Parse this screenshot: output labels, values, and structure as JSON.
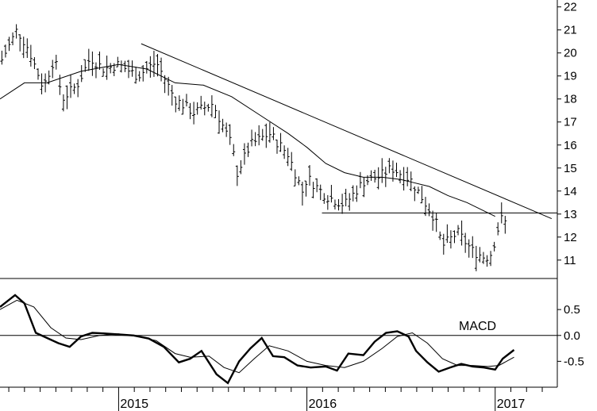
{
  "chart_data": [
    {
      "type": "ohlc",
      "panel": "price",
      "title": "",
      "ylim": [
        10.2,
        22.3
      ],
      "yticks": [
        11,
        12,
        13,
        14,
        15,
        16,
        17,
        18,
        19,
        20,
        21,
        22
      ],
      "x_tick_labels": [
        "2015",
        "2016",
        "2017"
      ],
      "x_tick_positions": [
        2015.0,
        2016.0,
        2017.0
      ],
      "xlim": [
        2014.37,
        2017.33
      ],
      "series": [
        {
          "kind": "price_bars",
          "anchors_t": [
            2014.38,
            2014.46,
            2014.52,
            2014.6,
            2014.66,
            2014.7,
            2014.78,
            2014.85,
            2014.92,
            2015.0,
            2015.1,
            2015.2,
            2015.3,
            2015.4,
            2015.5,
            2015.6,
            2015.63,
            2015.7,
            2015.8,
            2015.9,
            2015.98,
            2016.0,
            2016.1,
            2016.2,
            2016.3,
            2016.38,
            2016.45,
            2016.55,
            2016.62,
            2016.68,
            2016.72,
            2016.8,
            2016.88,
            2016.95,
            2016.98,
            2017.03,
            2017.06
          ],
          "anchors_close": [
            19.7,
            21.0,
            20.2,
            18.5,
            19.8,
            18.0,
            18.6,
            19.8,
            19.3,
            19.5,
            19.0,
            19.6,
            18.0,
            17.4,
            17.8,
            16.0,
            14.8,
            16.0,
            16.5,
            15.6,
            13.9,
            14.6,
            13.8,
            13.4,
            14.4,
            14.6,
            15.0,
            14.5,
            13.6,
            12.8,
            11.6,
            12.2,
            11.4,
            11.1,
            11.3,
            12.8,
            12.6
          ]
        },
        {
          "kind": "moving_average",
          "x": [
            2014.37,
            2014.5,
            2014.62,
            2014.8,
            2015.0,
            2015.15,
            2015.3,
            2015.45,
            2015.6,
            2015.75,
            2015.9,
            2016.0,
            2016.1,
            2016.2,
            2016.3,
            2016.4,
            2016.5,
            2016.55,
            2016.65,
            2016.75,
            2016.85,
            2016.95,
            2017.0
          ],
          "y": [
            18.0,
            18.7,
            18.7,
            19.2,
            19.5,
            19.3,
            18.7,
            18.6,
            18.1,
            17.3,
            16.5,
            15.9,
            15.2,
            14.8,
            14.6,
            14.6,
            14.5,
            14.4,
            14.2,
            13.8,
            13.5,
            13.1,
            12.9
          ]
        }
      ],
      "trendlines": [
        {
          "kind": "resistance",
          "x": [
            2015.12,
            2017.3
          ],
          "y": [
            20.4,
            12.8
          ]
        },
        {
          "kind": "support",
          "x": [
            2016.08,
            2017.33
          ],
          "y": [
            13.05,
            13.05
          ]
        }
      ]
    },
    {
      "type": "line",
      "panel": "indicator",
      "title": "MACD",
      "ylim": [
        -1.0,
        1.1
      ],
      "yticks": [
        -0.5,
        0.0,
        0.5
      ],
      "ytick_labels": [
        "-0.5",
        "0.0",
        "0.5"
      ],
      "zero_line": 0.0,
      "series": [
        {
          "kind": "macd",
          "x": [
            2014.37,
            2014.45,
            2014.5,
            2014.56,
            2014.62,
            2014.68,
            2014.74,
            2014.8,
            2014.86,
            2014.92,
            2015.0,
            2015.08,
            2015.16,
            2015.24,
            2015.32,
            2015.38,
            2015.44,
            2015.52,
            2015.58,
            2015.64,
            2015.7,
            2015.76,
            2015.82,
            2015.88,
            2015.95,
            2016.02,
            2016.1,
            2016.16,
            2016.22,
            2016.3,
            2016.36,
            2016.42,
            2016.48,
            2016.54,
            2016.58,
            2016.64,
            2016.7,
            2016.76,
            2016.82,
            2016.88,
            2016.94,
            2017.0,
            2017.04,
            2017.1
          ],
          "y": [
            0.55,
            0.78,
            0.62,
            0.05,
            -0.05,
            -0.15,
            -0.22,
            -0.02,
            0.05,
            0.04,
            0.02,
            0.0,
            -0.06,
            -0.22,
            -0.52,
            -0.45,
            -0.3,
            -0.75,
            -0.92,
            -0.5,
            -0.25,
            -0.05,
            -0.4,
            -0.42,
            -0.58,
            -0.62,
            -0.6,
            -0.68,
            -0.35,
            -0.38,
            -0.12,
            0.05,
            0.08,
            -0.02,
            -0.3,
            -0.52,
            -0.7,
            -0.62,
            -0.55,
            -0.6,
            -0.62,
            -0.66,
            -0.45,
            -0.28
          ]
        },
        {
          "kind": "signal",
          "x": [
            2014.37,
            2014.46,
            2014.55,
            2014.64,
            2014.72,
            2014.8,
            2014.9,
            2015.0,
            2015.1,
            2015.2,
            2015.3,
            2015.38,
            2015.48,
            2015.56,
            2015.64,
            2015.72,
            2015.8,
            2015.9,
            2016.0,
            2016.1,
            2016.2,
            2016.3,
            2016.4,
            2016.48,
            2016.56,
            2016.64,
            2016.72,
            2016.8,
            2016.88,
            2016.96,
            2017.02,
            2017.1
          ],
          "y": [
            0.5,
            0.68,
            0.55,
            0.15,
            -0.05,
            -0.08,
            0.0,
            0.03,
            -0.02,
            -0.1,
            -0.35,
            -0.42,
            -0.4,
            -0.62,
            -0.72,
            -0.45,
            -0.2,
            -0.3,
            -0.5,
            -0.58,
            -0.62,
            -0.5,
            -0.25,
            -0.02,
            0.05,
            -0.15,
            -0.45,
            -0.58,
            -0.58,
            -0.6,
            -0.58,
            -0.42
          ]
        }
      ]
    }
  ]
}
